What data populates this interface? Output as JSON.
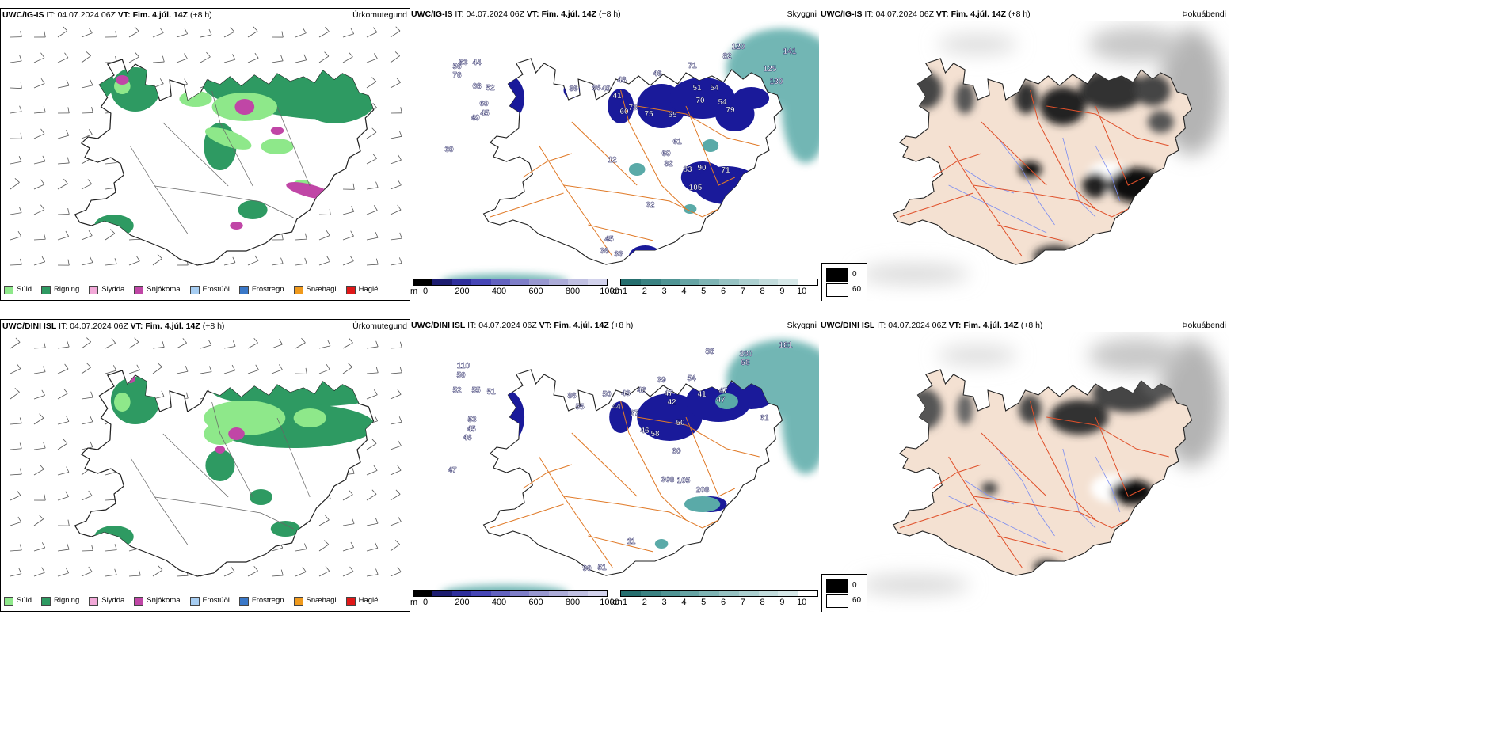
{
  "rows": [
    {
      "model": "UWC/IG-IS",
      "it_label": "IT:",
      "it_value": "04.07.2024 06Z",
      "vt_label": "VT:",
      "vt_value": "Fim. 4.júl. 14Z",
      "lead": "(+8 h)",
      "numbers": [
        {
          "v": "53"
        },
        {
          "v": "44"
        },
        {
          "v": "56"
        },
        {
          "v": "76"
        },
        {
          "v": "68"
        },
        {
          "v": "52"
        },
        {
          "v": "69"
        },
        {
          "v": "45"
        },
        {
          "v": "49"
        },
        {
          "v": "86"
        },
        {
          "v": "39"
        },
        {
          "v": "86"
        },
        {
          "v": "49"
        },
        {
          "v": "48"
        },
        {
          "v": "41"
        },
        {
          "v": "46"
        },
        {
          "v": "71"
        },
        {
          "v": "51"
        },
        {
          "v": "54"
        },
        {
          "v": "70"
        },
        {
          "v": "54"
        },
        {
          "v": "60"
        },
        {
          "v": "73"
        },
        {
          "v": "75"
        },
        {
          "v": "65"
        },
        {
          "v": "61"
        },
        {
          "v": "79"
        },
        {
          "v": "69"
        },
        {
          "v": "82"
        },
        {
          "v": "83"
        },
        {
          "v": "90"
        },
        {
          "v": "71"
        },
        {
          "v": "105"
        },
        {
          "v": "12"
        },
        {
          "v": "32"
        },
        {
          "v": "45"
        },
        {
          "v": "36"
        },
        {
          "v": "33"
        },
        {
          "v": "120"
        },
        {
          "v": "82"
        },
        {
          "v": "141"
        },
        {
          "v": "125"
        },
        {
          "v": "130"
        }
      ]
    },
    {
      "model": "UWC/DINI ISL",
      "it_label": "IT:",
      "it_value": "04.07.2024 06Z",
      "vt_label": "VT:",
      "vt_value": "Fim. 4.júl. 14Z",
      "lead": "(+8 h)",
      "numbers": [
        {
          "v": "110"
        },
        {
          "v": "50"
        },
        {
          "v": "52"
        },
        {
          "v": "55"
        },
        {
          "v": "51"
        },
        {
          "v": "53"
        },
        {
          "v": "45"
        },
        {
          "v": "46"
        },
        {
          "v": "47"
        },
        {
          "v": "86"
        },
        {
          "v": "55"
        },
        {
          "v": "50"
        },
        {
          "v": "43"
        },
        {
          "v": "46"
        },
        {
          "v": "44"
        },
        {
          "v": "39"
        },
        {
          "v": "47"
        },
        {
          "v": "42"
        },
        {
          "v": "54"
        },
        {
          "v": "41"
        },
        {
          "v": "47"
        },
        {
          "v": "37"
        },
        {
          "v": "46"
        },
        {
          "v": "58"
        },
        {
          "v": "50"
        },
        {
          "v": "47"
        },
        {
          "v": "61"
        },
        {
          "v": "60"
        },
        {
          "v": "308"
        },
        {
          "v": "105"
        },
        {
          "v": "208"
        },
        {
          "v": "11"
        },
        {
          "v": "90"
        },
        {
          "v": "51"
        },
        {
          "v": "88"
        },
        {
          "v": "280"
        },
        {
          "v": "181"
        },
        {
          "v": "58"
        }
      ]
    }
  ],
  "panel_titles": {
    "precip": "Úrkomutegund",
    "visibility": "Skyggni",
    "fog": "Þokuábendi"
  },
  "precip_legend": [
    {
      "label": "Súld",
      "color": "#8ee88a"
    },
    {
      "label": "Rigning",
      "color": "#2e9a62"
    },
    {
      "label": "Slydda",
      "color": "#f2a9d8"
    },
    {
      "label": "Snjókoma",
      "color": "#c046a6"
    },
    {
      "label": "Frostúði",
      "color": "#a6cdf2"
    },
    {
      "label": "Frostregn",
      "color": "#3a78c8"
    },
    {
      "label": "Snæhagl",
      "color": "#f09a1c"
    },
    {
      "label": "Haglél",
      "color": "#e01818"
    }
  ],
  "ceiling_scale": {
    "unit": "m",
    "ticks": [
      "0",
      "200",
      "400",
      "600",
      "800",
      "1000"
    ],
    "colors": [
      "#000000",
      "#1c1c70",
      "#2e2e9c",
      "#4646b6",
      "#6262c0",
      "#7e7ec8",
      "#9898d0",
      "#acacd8",
      "#c0c0e2",
      "#d2d2ec"
    ]
  },
  "vis_scale": {
    "unit": "km",
    "ticks": [
      "1",
      "2",
      "3",
      "4",
      "5",
      "6",
      "7",
      "8",
      "9",
      "10"
    ],
    "colors": [
      "#256e6e",
      "#3a8282",
      "#4f9494",
      "#66a4a4",
      "#7eb4b4",
      "#96c2c2",
      "#acd0d0",
      "#c2dcdc",
      "#d6e8e8",
      "#ffffff"
    ]
  },
  "fog_legend": [
    {
      "value": "0",
      "color": "#000000"
    },
    {
      "value": "60",
      "color": "#ffffff"
    }
  ],
  "colors": {
    "rain": "#2e9a62",
    "drizzle": "#8ee88a",
    "snow": "#c046a6",
    "sleet": "#f2a9d8",
    "cloud": "#1a1a9a",
    "sea_vis": "#5aaaa8",
    "roads": "#e07a28",
    "land_fog": "#f4e1d2",
    "rivers": "#7e8ef0",
    "roads_fog": "#e0502a"
  }
}
